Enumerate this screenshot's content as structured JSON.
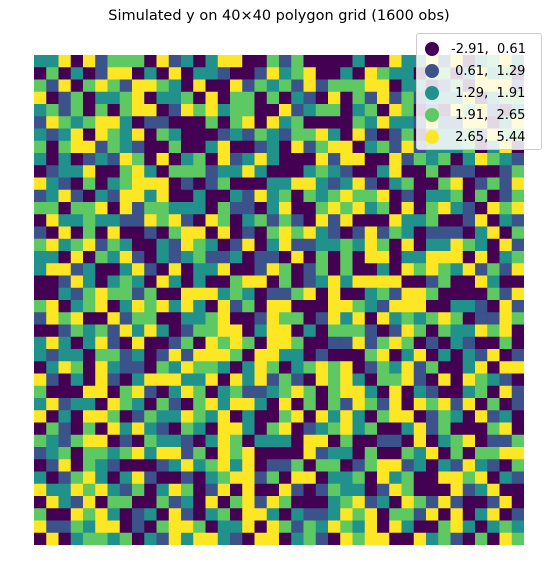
{
  "chart_data": {
    "type": "heatmap",
    "title": "Simulated y on 40×40 polygon grid (1600 obs)",
    "grid": {
      "rows": 40,
      "cols": 40
    },
    "axis": "off",
    "legend_position": "top-right",
    "classes": [
      {
        "label": "-2.91,  0.61",
        "min": -2.91,
        "max": 0.61,
        "color": "#440154"
      },
      {
        "label": " 0.61,  1.29",
        "min": 0.61,
        "max": 1.29,
        "color": "#3b528b"
      },
      {
        "label": " 1.29,  1.91",
        "min": 1.29,
        "max": 1.91,
        "color": "#21918c"
      },
      {
        "label": " 1.91,  2.65",
        "min": 1.91,
        "max": 2.65,
        "color": "#5ec962"
      },
      {
        "label": " 2.65,  5.44",
        "min": 2.65,
        "max": 5.44,
        "color": "#fde725"
      }
    ],
    "cells_note": "class index per cell, row 0 = top",
    "cells": [
      "2240413330412024400313000020042241402342",
      "0302014402040221001423400204322033024230",
      "3140343144320400413231413334402201304441",
      "4013022340223040330302104031413122240233",
      "2313030344014342330041233023043010434102",
      "1432344201100030340423000032422141144024",
      "2124043240320001213213342041013022231433",
      "3034413210030024001204134402314122230240",
      "2020121430402304124200041440041323024321",
      "0122400342033312242000232100240030110013",
      "4210302344401013000224421241023003401314",
      "1241021442400200214230323433401022303013",
      "3303340413322203110240034342304034210434",
      "0422322114341043023131041400042230014021",
      "1040304001034404010343421014132011102403",
      "3423413200214320140241122324304022432041",
      "2204032410212311201104030304402244404023",
      "2441200241040224001430130300204343241314",
      "0014202320420200344030124244440013004200",
      "0021343313004442320113404002314430000314",
      "3402340243424204130440004432144400221041",
      "1434004133002234001433014240423234301143",
      "0013231424201334402440203331014303224340",
      "2420241040013043430443001141343010210030",
      "2122033120141444304422010003402402021401",
      "0243042110324332024302343401324130024044",
      "4102041024442240424131043420334104043210",
      "3000440341024302311234303442040210023041",
      "2412204320310342442040303143140434140301",
      "4020443013224324020034042420344013204120",
      "0310304242103204420340123423002413000340",
      "3213440103221024302220440300110402340113",
      "1230332342441304340000412203003240303344",
      "0140321000124234240113033013441202142103",
      "2013420241001023441304402230423004434021",
      "4224342130243014040041013220143000412400",
      "0421403300312040341430002341204314100140",
      "3004342012041023044202112434033140402401",
      "4113244010344302240431324324042003420232",
      "0402332302142442104402310434400423103043"
    ]
  }
}
